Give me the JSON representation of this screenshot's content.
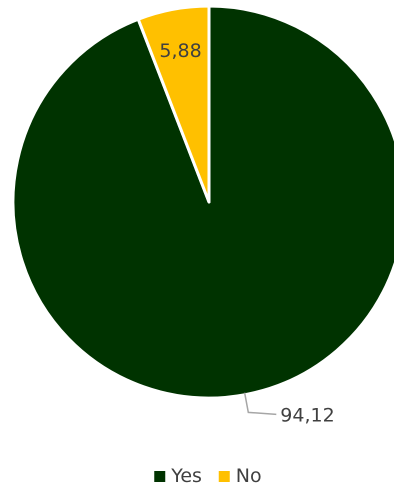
{
  "chart_data": {
    "type": "pie",
    "title": "",
    "start_angle_deg": 0,
    "direction": "clockwise",
    "slices": [
      {
        "label": "Yes",
        "value": 94.12,
        "display": "94,12",
        "color": "#003300",
        "label_color": "#404040",
        "leader_line": true
      },
      {
        "label": "No",
        "value": 5.88,
        "display": "5,88",
        "color": "#FFC000",
        "label_color": "#404040",
        "leader_line": false
      }
    ],
    "legend": {
      "position": "bottom",
      "entries": [
        "Yes",
        "No"
      ]
    },
    "slice_border_color": "#ffffff",
    "leader_line_color": "#A6A6A6"
  }
}
